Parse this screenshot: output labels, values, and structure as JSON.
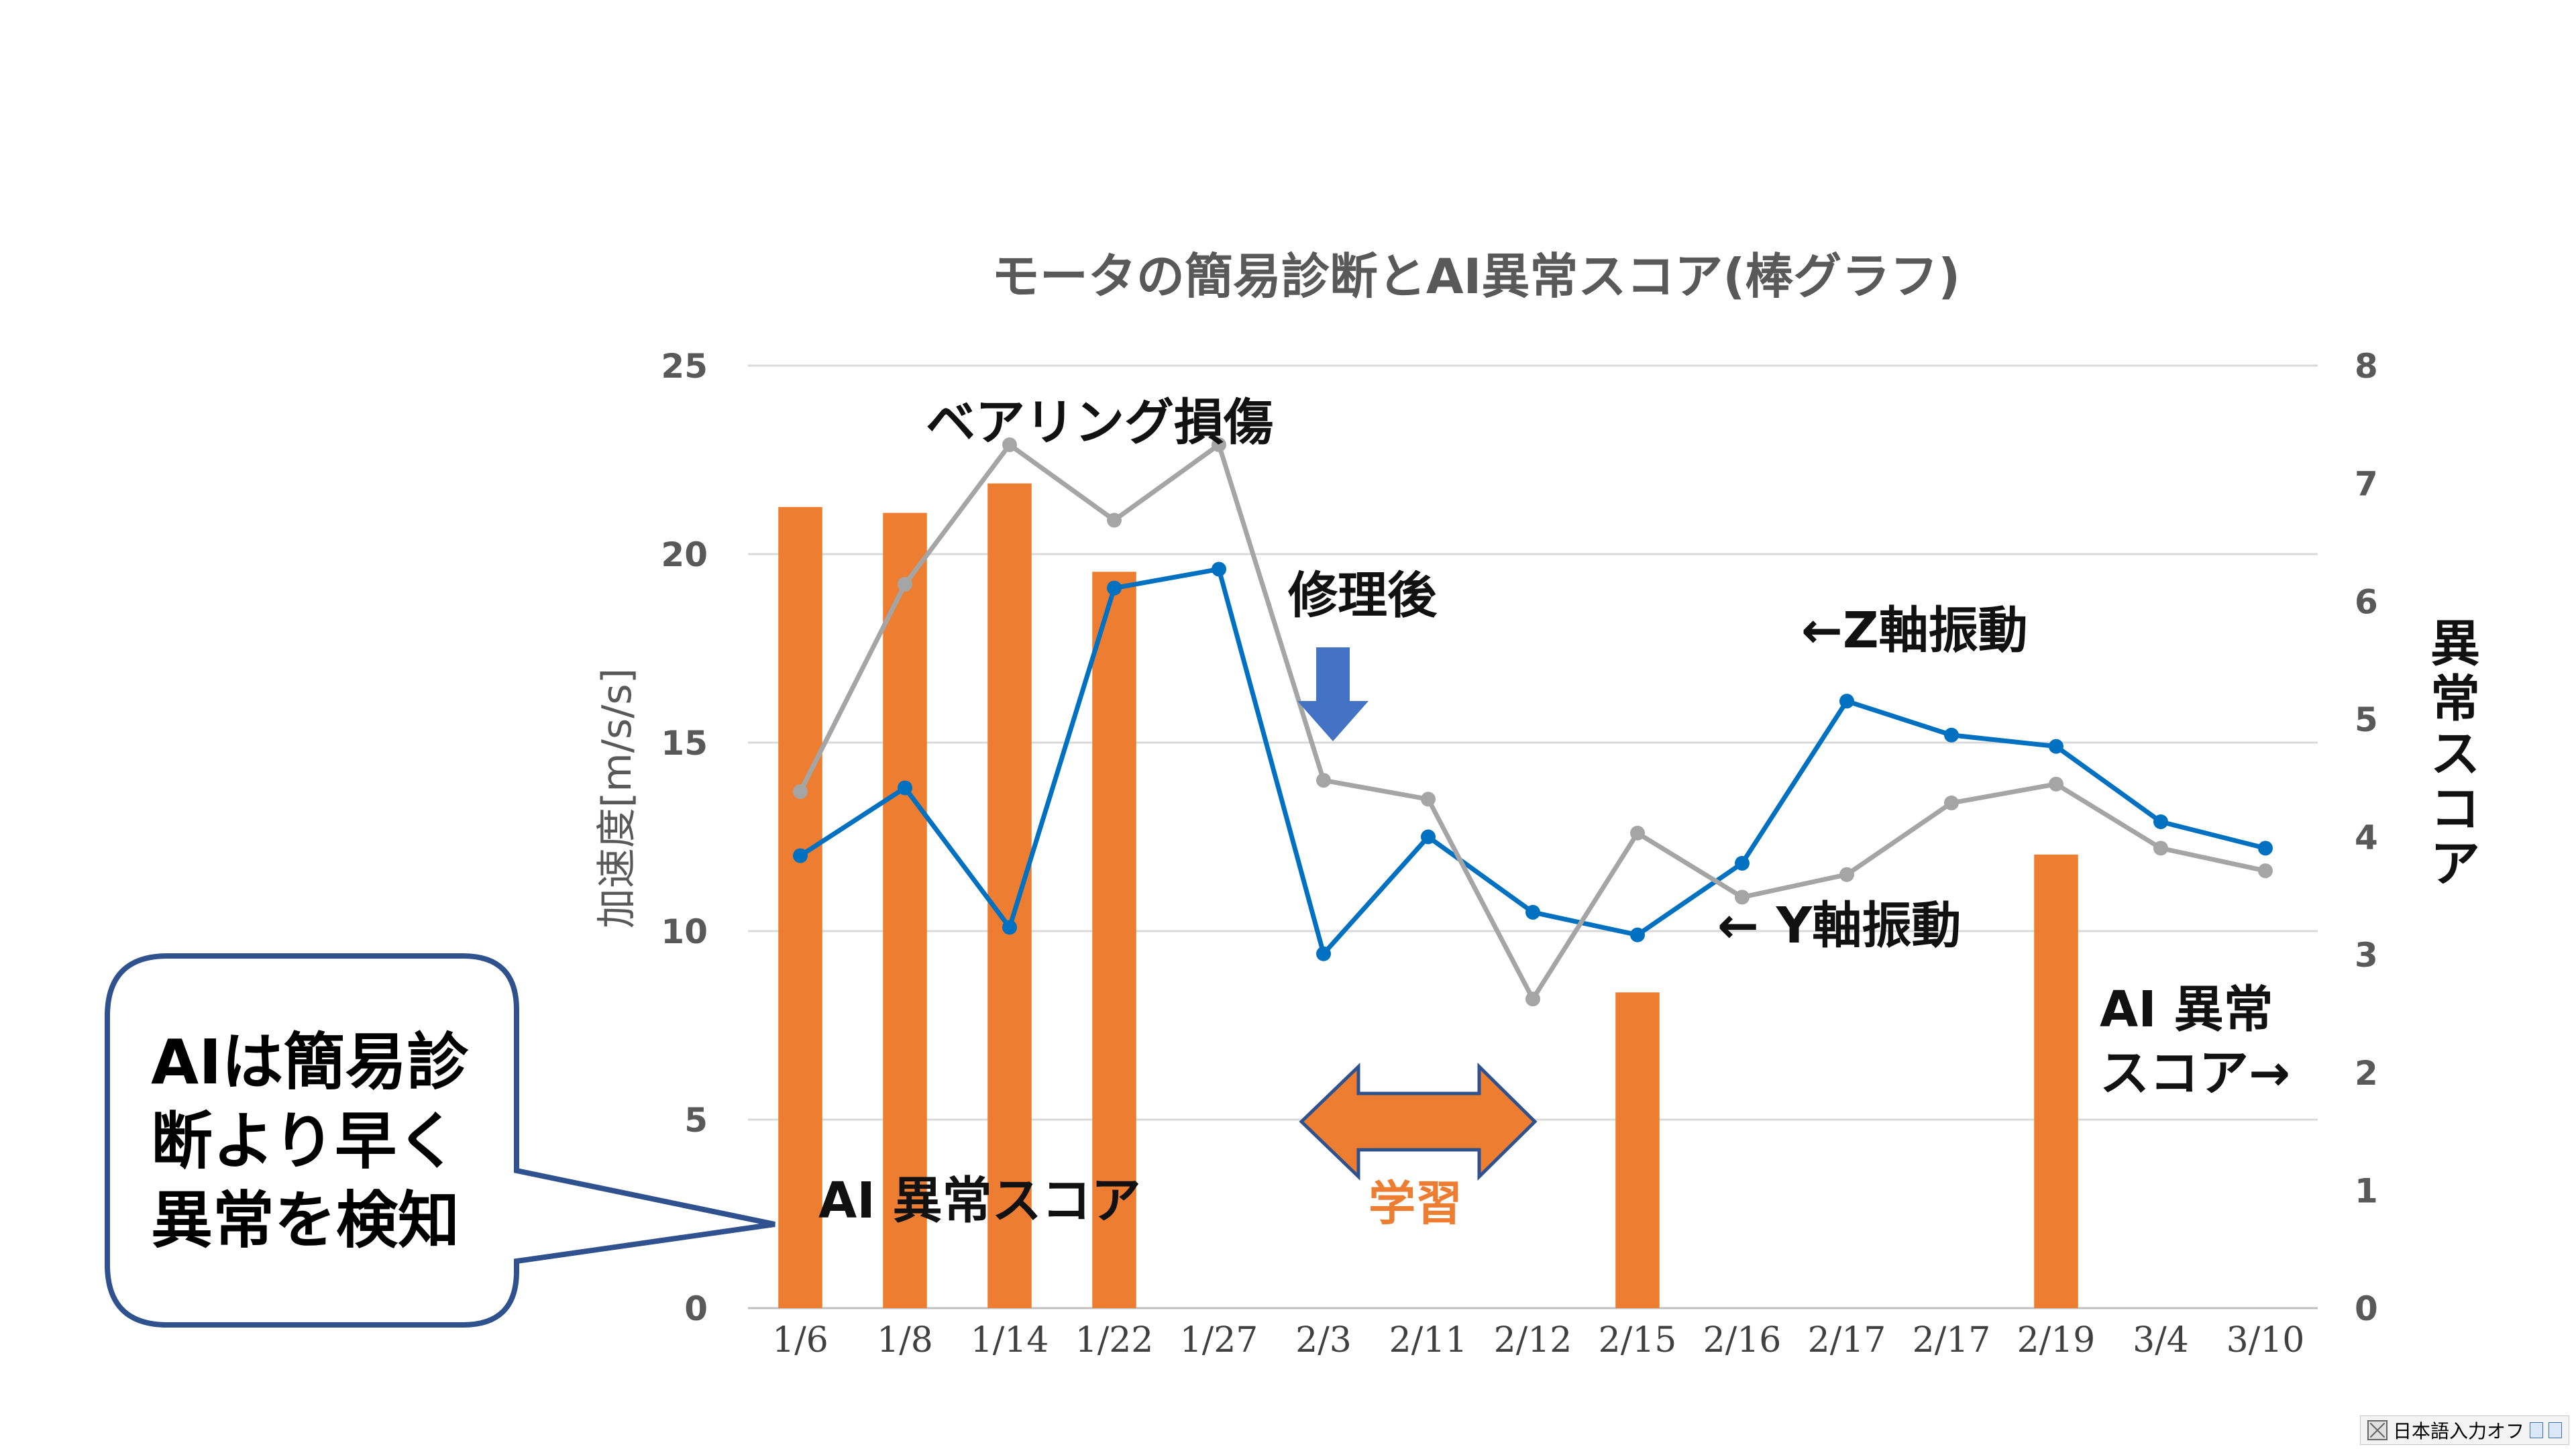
{
  "chart_data": {
    "type": "bar",
    "title": "モータの簡易診断とAI異常スコア(棒グラフ)",
    "categories": [
      "1/6",
      "1/8",
      "1/14",
      "1/22",
      "1/27",
      "2/3",
      "2/11",
      "2/12",
      "2/15",
      "2/16",
      "2/17",
      "2/17",
      "2/19",
      "3/4",
      "3/10"
    ],
    "ylabel": "加速度[m/s/s]",
    "ylim": [
      0,
      25
    ],
    "yticks": [
      "0",
      "5",
      "10",
      "15",
      "20",
      "25"
    ],
    "y2label": "異常スコア",
    "y2lim": [
      0,
      8
    ],
    "y2ticks": [
      "0",
      "1",
      "2",
      "3",
      "4",
      "5",
      "6",
      "7",
      "8"
    ],
    "grid": true,
    "series": [
      {
        "kind": "bar",
        "axis": "right",
        "color": "#ED7D31",
        "values": [
          6.8,
          6.75,
          7.0,
          6.25,
          0,
          0,
          0,
          0,
          2.68,
          0,
          0,
          0,
          3.85,
          0,
          0
        ]
      },
      {
        "kind": "line",
        "axis": "left",
        "color": "#0070C0",
        "values": [
          12.0,
          13.8,
          10.1,
          19.1,
          19.6,
          9.4,
          12.5,
          10.5,
          9.9,
          11.8,
          16.1,
          15.2,
          14.9,
          12.9,
          12.2
        ]
      },
      {
        "kind": "line",
        "axis": "left",
        "color": "#A5A5A5",
        "values": [
          13.7,
          19.2,
          22.9,
          20.9,
          22.9,
          14.0,
          13.5,
          8.2,
          12.6,
          10.9,
          11.5,
          13.4,
          13.9,
          12.2,
          11.6
        ]
      }
    ],
    "annotations": {
      "bearing": "ベアリング損傷",
      "repair": "修理後",
      "z_axis": "←Z軸振動",
      "y_axis": "← Y軸振動",
      "ai_score_right_line1": "AI 異常",
      "ai_score_right_line2": "スコア→",
      "ai_score_bottom": "AI 異常スコア",
      "learning": "学習"
    },
    "callout": [
      "AIは簡易診",
      "断より早く",
      "異常を検知"
    ],
    "colors": {
      "arrow_blue": "#4472C4",
      "callout_border": "#2F528F"
    }
  },
  "ime": {
    "label": "日本語入力オフ"
  }
}
